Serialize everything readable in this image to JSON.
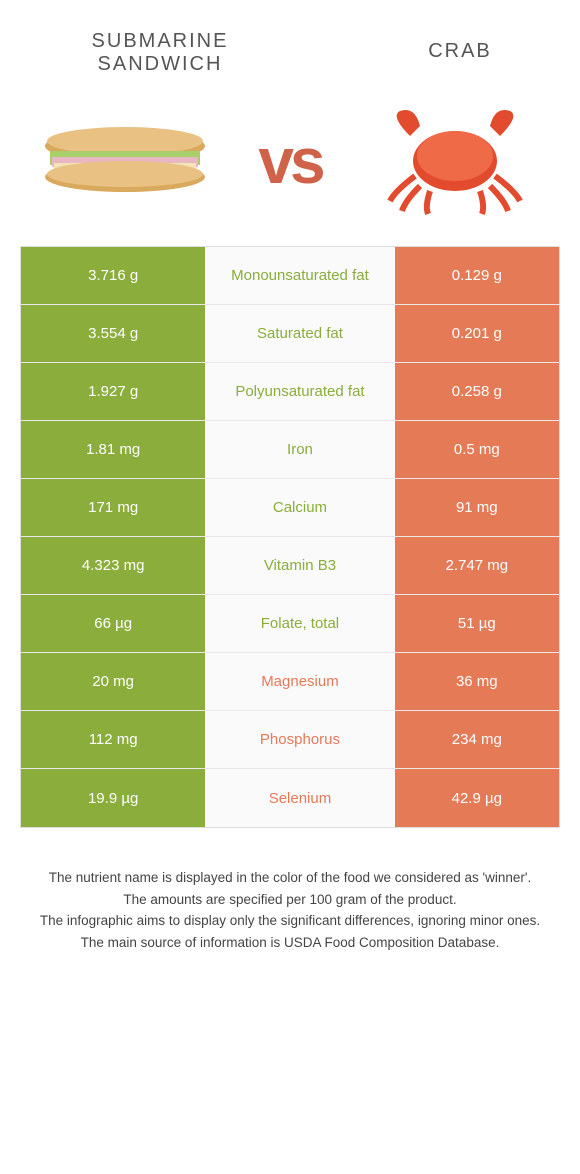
{
  "header": {
    "left_title": "SUBMARINE SANDWICH",
    "right_title": "CRAB",
    "vs": "vs"
  },
  "colors": {
    "green": "#8aad3c",
    "orange": "#e57a57"
  },
  "rows": [
    {
      "left": "3.716 g",
      "mid": "Monounsaturated fat",
      "right": "0.129 g",
      "winner": "left"
    },
    {
      "left": "3.554 g",
      "mid": "Saturated fat",
      "right": "0.201 g",
      "winner": "left"
    },
    {
      "left": "1.927 g",
      "mid": "Polyunsaturated fat",
      "right": "0.258 g",
      "winner": "left"
    },
    {
      "left": "1.81 mg",
      "mid": "Iron",
      "right": "0.5 mg",
      "winner": "left"
    },
    {
      "left": "171 mg",
      "mid": "Calcium",
      "right": "91 mg",
      "winner": "left"
    },
    {
      "left": "4.323 mg",
      "mid": "Vitamin B3",
      "right": "2.747 mg",
      "winner": "left"
    },
    {
      "left": "66 µg",
      "mid": "Folate, total",
      "right": "51 µg",
      "winner": "left"
    },
    {
      "left": "20 mg",
      "mid": "Magnesium",
      "right": "36 mg",
      "winner": "right"
    },
    {
      "left": "112 mg",
      "mid": "Phosphorus",
      "right": "234 mg",
      "winner": "right"
    },
    {
      "left": "19.9 µg",
      "mid": "Selenium",
      "right": "42.9 µg",
      "winner": "right"
    }
  ],
  "footer": {
    "line1": "The nutrient name is displayed in the color of the food we considered as 'winner'.",
    "line2": "The amounts are specified per 100 gram of the product.",
    "line3": "The infographic aims to display only the significant differences, ignoring minor ones.",
    "line4": "The main source of information is USDA Food Composition Database."
  }
}
